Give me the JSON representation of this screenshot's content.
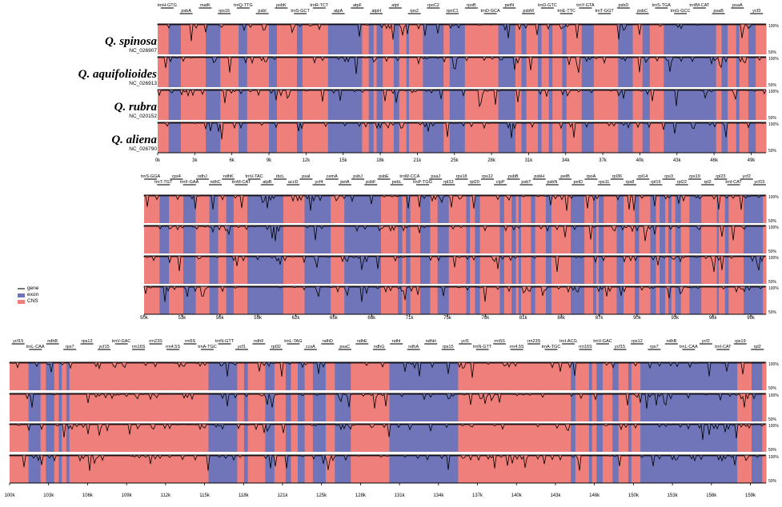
{
  "figure": {
    "species": [
      {
        "name": "Q. spinosa",
        "accession": "NC_026907"
      },
      {
        "name": "Q. aquifolioides",
        "accession": "NC_026913"
      },
      {
        "name": "Q. rubra",
        "accession": "NC_020152"
      },
      {
        "name": "Q. aliena",
        "accession": "NC_026790"
      }
    ],
    "legend": [
      {
        "label": "gene",
        "color": "#7a7a7a"
      },
      {
        "label": "exon",
        "color": "#6f75b8"
      },
      {
        "label": "CNS",
        "color": "#ef7f7b"
      }
    ],
    "colors": {
      "exon": "#6f75b8",
      "cns": "#ef7f7b",
      "trace": "#000000",
      "gene": "#7a7a7a"
    },
    "pct_labels": {
      "top": "100%",
      "bottom": "50%"
    },
    "panels": [
      {
        "range_k": [
          0,
          50
        ],
        "ticks": [
          "0k",
          "3k",
          "6k",
          "9k",
          "12k",
          "15k",
          "18k",
          "21k",
          "25k",
          "28k",
          "31k",
          "34k",
          "37k",
          "40k",
          "43k",
          "46k",
          "49k"
        ],
        "genes": [
          "trnH-GTG",
          "psbA",
          "matK",
          "rps16",
          "trnQ-TTG",
          "psbI",
          "psbK",
          "trnS-GCT",
          "trnR-TCT",
          "atpA",
          "atpF",
          "atpH",
          "atpI",
          "rps2",
          "rpoC2",
          "rpoC1",
          "rpoB",
          "trnD-GCA",
          "petN",
          "psbM",
          "trnD-GTC",
          "trnE-TTC",
          "trnY-GTA",
          "trnT-GGT",
          "psbD",
          "psbC",
          "trnS-TGA",
          "trnG-GCC",
          "trnfM-CAT",
          "psaB",
          "psaA",
          "ycf3"
        ],
        "segments": [
          [
            0,
            0.018,
            "c"
          ],
          [
            0.018,
            0.038,
            "e"
          ],
          [
            0.038,
            0.079,
            "c"
          ],
          [
            0.079,
            0.103,
            "e"
          ],
          [
            0.103,
            0.133,
            "c"
          ],
          [
            0.133,
            0.147,
            "e"
          ],
          [
            0.147,
            0.183,
            "c"
          ],
          [
            0.183,
            0.196,
            "e"
          ],
          [
            0.196,
            0.229,
            "c"
          ],
          [
            0.229,
            0.238,
            "e"
          ],
          [
            0.238,
            0.28,
            "c"
          ],
          [
            0.28,
            0.336,
            "e"
          ],
          [
            0.336,
            0.347,
            "c"
          ],
          [
            0.347,
            0.355,
            "e"
          ],
          [
            0.355,
            0.36,
            "c"
          ],
          [
            0.36,
            0.37,
            "e"
          ],
          [
            0.37,
            0.388,
            "c"
          ],
          [
            0.388,
            0.397,
            "e"
          ],
          [
            0.397,
            0.409,
            "c"
          ],
          [
            0.409,
            0.413,
            "e"
          ],
          [
            0.413,
            0.436,
            "c"
          ],
          [
            0.436,
            0.47,
            "e"
          ],
          [
            0.47,
            0.48,
            "c"
          ],
          [
            0.48,
            0.505,
            "e"
          ],
          [
            0.505,
            0.56,
            "c"
          ],
          [
            0.56,
            0.588,
            "e"
          ],
          [
            0.588,
            0.598,
            "c"
          ],
          [
            0.598,
            0.606,
            "e"
          ],
          [
            0.606,
            0.625,
            "c"
          ],
          [
            0.625,
            0.631,
            "e"
          ],
          [
            0.631,
            0.643,
            "c"
          ],
          [
            0.643,
            0.649,
            "e"
          ],
          [
            0.649,
            0.665,
            "c"
          ],
          [
            0.665,
            0.672,
            "e"
          ],
          [
            0.672,
            0.697,
            "c"
          ],
          [
            0.697,
            0.717,
            "e"
          ],
          [
            0.717,
            0.757,
            "c"
          ],
          [
            0.757,
            0.781,
            "e"
          ],
          [
            0.781,
            0.797,
            "c"
          ],
          [
            0.797,
            0.809,
            "e"
          ],
          [
            0.809,
            0.832,
            "c"
          ],
          [
            0.832,
            0.918,
            "e"
          ],
          [
            0.918,
            0.927,
            "c"
          ],
          [
            0.927,
            0.937,
            "e"
          ],
          [
            0.937,
            0.951,
            "c"
          ],
          [
            0.951,
            0.956,
            "e"
          ],
          [
            0.956,
            0.971,
            "c"
          ],
          [
            0.971,
            0.983,
            "e"
          ],
          [
            0.983,
            1,
            "c"
          ]
        ]
      },
      {
        "range_k": [
          50,
          100
        ],
        "ticks": [
          "50k",
          "53k",
          "56k",
          "59k",
          "62k",
          "65k",
          "68k",
          "71k",
          "75k",
          "78k",
          "81k",
          "84k",
          "87k",
          "90k",
          "93k",
          "96k",
          "99k"
        ],
        "genes": [
          "trnS-GGA",
          "trnT-TGT",
          "rps4",
          "trnF-GAA",
          "ndhJ",
          "ndhC",
          "ndhK",
          "trnM-CAT",
          "trnV-TAC",
          "atpB",
          "rbcL",
          "accD",
          "psaI",
          "ycf4",
          "cemA",
          "petA",
          "psbJ",
          "psbF",
          "psbE",
          "psbL",
          "trnW-CCA",
          "trnP-TGG",
          "psaJ",
          "rpl33",
          "rps18",
          "rpl20",
          "rps12",
          "clpP",
          "psbB",
          "psbT",
          "psbH",
          "psbN",
          "petB",
          "petD",
          "rpoA",
          "rps11",
          "rpl36",
          "rps8",
          "rpl14",
          "rpl16",
          "rps3",
          "rpl22",
          "rps19",
          "rpl2",
          "rpl23",
          "trnI-CAT",
          "ycf2",
          "ycf15"
        ],
        "segments": [
          [
            0,
            0.025,
            "c"
          ],
          [
            0.025,
            0.04,
            "e"
          ],
          [
            0.04,
            0.063,
            "c"
          ],
          [
            0.063,
            0.083,
            "e"
          ],
          [
            0.083,
            0.105,
            "c"
          ],
          [
            0.105,
            0.119,
            "e"
          ],
          [
            0.119,
            0.132,
            "c"
          ],
          [
            0.132,
            0.144,
            "e"
          ],
          [
            0.144,
            0.166,
            "c"
          ],
          [
            0.166,
            0.224,
            "e"
          ],
          [
            0.224,
            0.258,
            "c"
          ],
          [
            0.258,
            0.3,
            "e"
          ],
          [
            0.3,
            0.322,
            "c"
          ],
          [
            0.322,
            0.381,
            "e"
          ],
          [
            0.381,
            0.408,
            "c"
          ],
          [
            0.408,
            0.415,
            "e"
          ],
          [
            0.415,
            0.421,
            "c"
          ],
          [
            0.421,
            0.428,
            "e"
          ],
          [
            0.428,
            0.444,
            "c"
          ],
          [
            0.444,
            0.46,
            "e"
          ],
          [
            0.46,
            0.472,
            "c"
          ],
          [
            0.472,
            0.49,
            "e"
          ],
          [
            0.49,
            0.518,
            "c"
          ],
          [
            0.518,
            0.524,
            "e"
          ],
          [
            0.524,
            0.532,
            "c"
          ],
          [
            0.532,
            0.54,
            "e"
          ],
          [
            0.54,
            0.572,
            "c"
          ],
          [
            0.572,
            0.579,
            "e"
          ],
          [
            0.579,
            0.591,
            "c"
          ],
          [
            0.591,
            0.598,
            "e"
          ],
          [
            0.598,
            0.602,
            "c"
          ],
          [
            0.602,
            0.606,
            "e"
          ],
          [
            0.606,
            0.622,
            "c"
          ],
          [
            0.622,
            0.629,
            "e"
          ],
          [
            0.629,
            0.646,
            "c"
          ],
          [
            0.646,
            0.655,
            "e"
          ],
          [
            0.655,
            0.686,
            "c"
          ],
          [
            0.686,
            0.708,
            "e"
          ],
          [
            0.708,
            0.722,
            "c"
          ],
          [
            0.722,
            0.727,
            "e"
          ],
          [
            0.727,
            0.731,
            "c"
          ],
          [
            0.731,
            0.739,
            "e"
          ],
          [
            0.739,
            0.76,
            "c"
          ],
          [
            0.76,
            0.771,
            "e"
          ],
          [
            0.771,
            0.789,
            "c"
          ],
          [
            0.789,
            0.796,
            "e"
          ],
          [
            0.796,
            0.814,
            "c"
          ],
          [
            0.814,
            0.823,
            "e"
          ],
          [
            0.823,
            0.829,
            "c"
          ],
          [
            0.829,
            0.838,
            "e"
          ],
          [
            0.838,
            0.843,
            "c"
          ],
          [
            0.843,
            0.848,
            "e"
          ],
          [
            0.848,
            0.854,
            "c"
          ],
          [
            0.854,
            0.863,
            "e"
          ],
          [
            0.863,
            0.877,
            "c"
          ],
          [
            0.877,
            0.896,
            "e"
          ],
          [
            0.896,
            0.921,
            "c"
          ],
          [
            0.921,
            0.924,
            "e"
          ],
          [
            0.924,
            0.934,
            "c"
          ],
          [
            0.934,
            0.94,
            "e"
          ],
          [
            0.94,
            0.964,
            "c"
          ],
          [
            0.964,
            0.995,
            "e"
          ],
          [
            0.995,
            1,
            "c"
          ]
        ]
      },
      {
        "range_k": [
          100,
          161
        ],
        "ticks": [
          "100k",
          "103k",
          "106k",
          "109k",
          "112k",
          "115k",
          "118k",
          "121k",
          "125k",
          "128k",
          "131k",
          "134k",
          "137k",
          "140k",
          "143k",
          "146k",
          "150k",
          "153k",
          "156k",
          "159k"
        ],
        "genes": [
          "ycf15",
          "trnL-CAA",
          "ndhB",
          "rps7",
          "rps12",
          "ycf15",
          "trnV-GAC",
          "rrn16S",
          "rrn23S",
          "rrn4.5S",
          "rrn5S",
          "trnA-TGC",
          "trnN-GTT",
          "ycf1",
          "ndhF",
          "rpl32",
          "trnL-TAG",
          "ccsA",
          "ndhD",
          "psaC",
          "ndhE",
          "ndhG",
          "ndhI",
          "ndhA",
          "ndhH",
          "rps15",
          "ycf1",
          "trnN-GTT",
          "rrn5S",
          "rrn4.5S",
          "rrn23S",
          "trnA-TGC",
          "trnI-ACG",
          "rrn16S",
          "trnV-GAC",
          "ycf15",
          "rps12",
          "rps7",
          "ndhB",
          "trnL-CAA",
          "ycf2",
          "trnI-CAT",
          "rps19",
          "rpl2"
        ],
        "segments": [
          [
            0,
            0.025,
            "c"
          ],
          [
            0.025,
            0.041,
            "e"
          ],
          [
            0.041,
            0.048,
            "c"
          ],
          [
            0.048,
            0.059,
            "e"
          ],
          [
            0.059,
            0.065,
            "c"
          ],
          [
            0.065,
            0.069,
            "e"
          ],
          [
            0.069,
            0.075,
            "c"
          ],
          [
            0.075,
            0.079,
            "e"
          ],
          [
            0.079,
            0.263,
            "c"
          ],
          [
            0.263,
            0.301,
            "e"
          ],
          [
            0.301,
            0.31,
            "c"
          ],
          [
            0.31,
            0.315,
            "e"
          ],
          [
            0.315,
            0.338,
            "c"
          ],
          [
            0.338,
            0.35,
            "e"
          ],
          [
            0.35,
            0.365,
            "c"
          ],
          [
            0.365,
            0.372,
            "e"
          ],
          [
            0.372,
            0.381,
            "c"
          ],
          [
            0.381,
            0.39,
            "e"
          ],
          [
            0.39,
            0.401,
            "c"
          ],
          [
            0.401,
            0.418,
            "e"
          ],
          [
            0.418,
            0.43,
            "c"
          ],
          [
            0.43,
            0.451,
            "e"
          ],
          [
            0.451,
            0.502,
            "c"
          ],
          [
            0.502,
            0.593,
            "e"
          ],
          [
            0.593,
            0.742,
            "c"
          ],
          [
            0.742,
            0.748,
            "e"
          ],
          [
            0.748,
            0.766,
            "c"
          ],
          [
            0.766,
            0.77,
            "e"
          ],
          [
            0.77,
            0.776,
            "c"
          ],
          [
            0.776,
            0.784,
            "e"
          ],
          [
            0.784,
            0.797,
            "c"
          ],
          [
            0.797,
            0.805,
            "e"
          ],
          [
            0.805,
            0.818,
            "c"
          ],
          [
            0.818,
            0.822,
            "e"
          ],
          [
            0.822,
            0.834,
            "c"
          ],
          [
            0.834,
            0.849,
            "e"
          ],
          [
            0.849,
            0.962,
            "e"
          ],
          [
            0.962,
            0.981,
            "c"
          ],
          [
            0.981,
            0.995,
            "e"
          ],
          [
            0.995,
            1,
            "c"
          ]
        ]
      }
    ]
  }
}
